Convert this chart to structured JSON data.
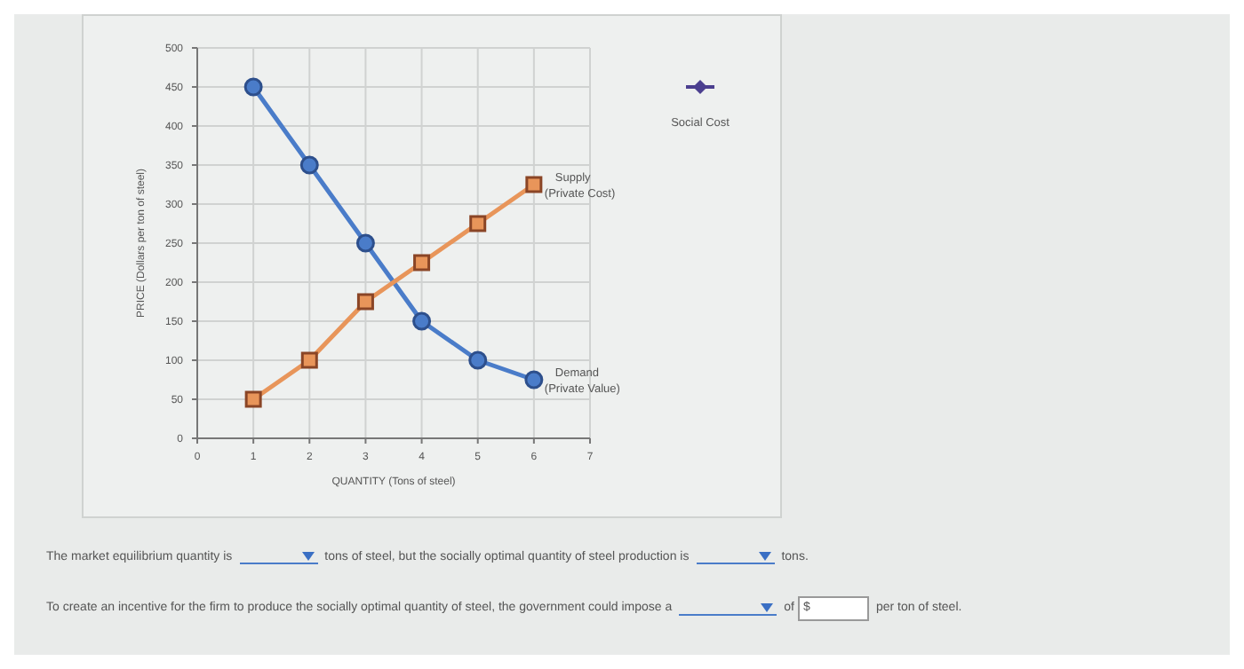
{
  "chart_data": {
    "type": "line",
    "xlabel": "QUANTITY (Tons of steel)",
    "ylabel": "PRICE (Dollars per ton of steel)",
    "x": [
      1,
      2,
      3,
      4,
      5,
      6
    ],
    "series": [
      {
        "name": "Demand (Private Value)",
        "color": "#4a7cc9",
        "marker": "circle",
        "values": [
          450,
          350,
          250,
          150,
          100,
          75
        ]
      },
      {
        "name": "Supply (Private Cost)",
        "color": "#e8955a",
        "marker": "square",
        "values": [
          50,
          100,
          175,
          225,
          275,
          325
        ]
      }
    ],
    "xlim": [
      0,
      7
    ],
    "xticks": [
      0,
      1,
      2,
      3,
      4,
      5,
      6,
      7
    ],
    "ylim": [
      0,
      500
    ],
    "yticks": [
      0,
      50,
      100,
      150,
      200,
      250,
      300,
      350,
      400,
      450,
      500
    ],
    "grid": true,
    "annotations": [
      "Social Cost",
      "The market equilibrium quantity is",
      "tons of steel, but the socially optimal quantity of steel production is",
      "tons.",
      "To create an incentive for the firm to produce the socially optimal quantity of steel, the government could impose a",
      "of",
      "$",
      "per ton of steel."
    ]
  }
}
